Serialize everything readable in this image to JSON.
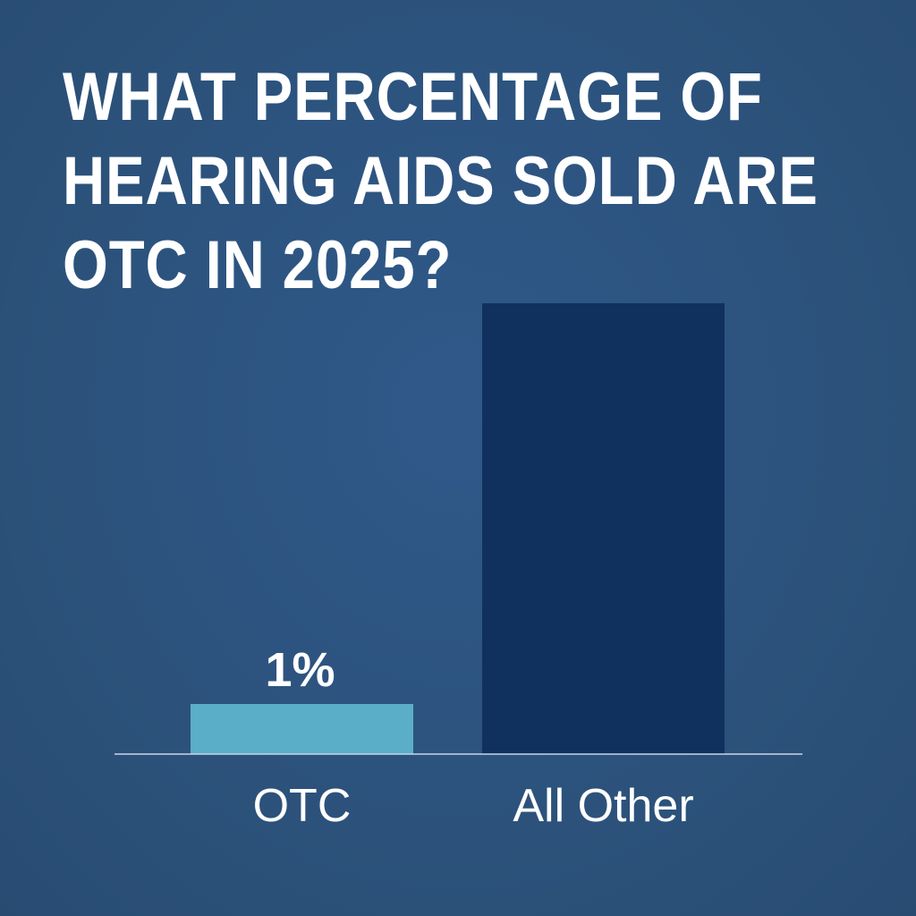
{
  "chart_data": {
    "type": "bar",
    "title_lines": [
      "WHAT PERCENTAGE OF",
      "HEARING AIDS SOLD ARE",
      "OTC IN 2025?"
    ],
    "categories": [
      "OTC",
      "All Other"
    ],
    "values": [
      1,
      9
    ],
    "value_unit": "relative share",
    "data_labels": [
      "1%",
      ""
    ],
    "bar_colors": [
      "#5aaec8",
      "#10315e"
    ],
    "xlabel": "",
    "ylabel": "",
    "ylim": [
      0,
      9
    ],
    "grid": false,
    "legend": "none",
    "baseline_color": "#c9d6e6"
  }
}
